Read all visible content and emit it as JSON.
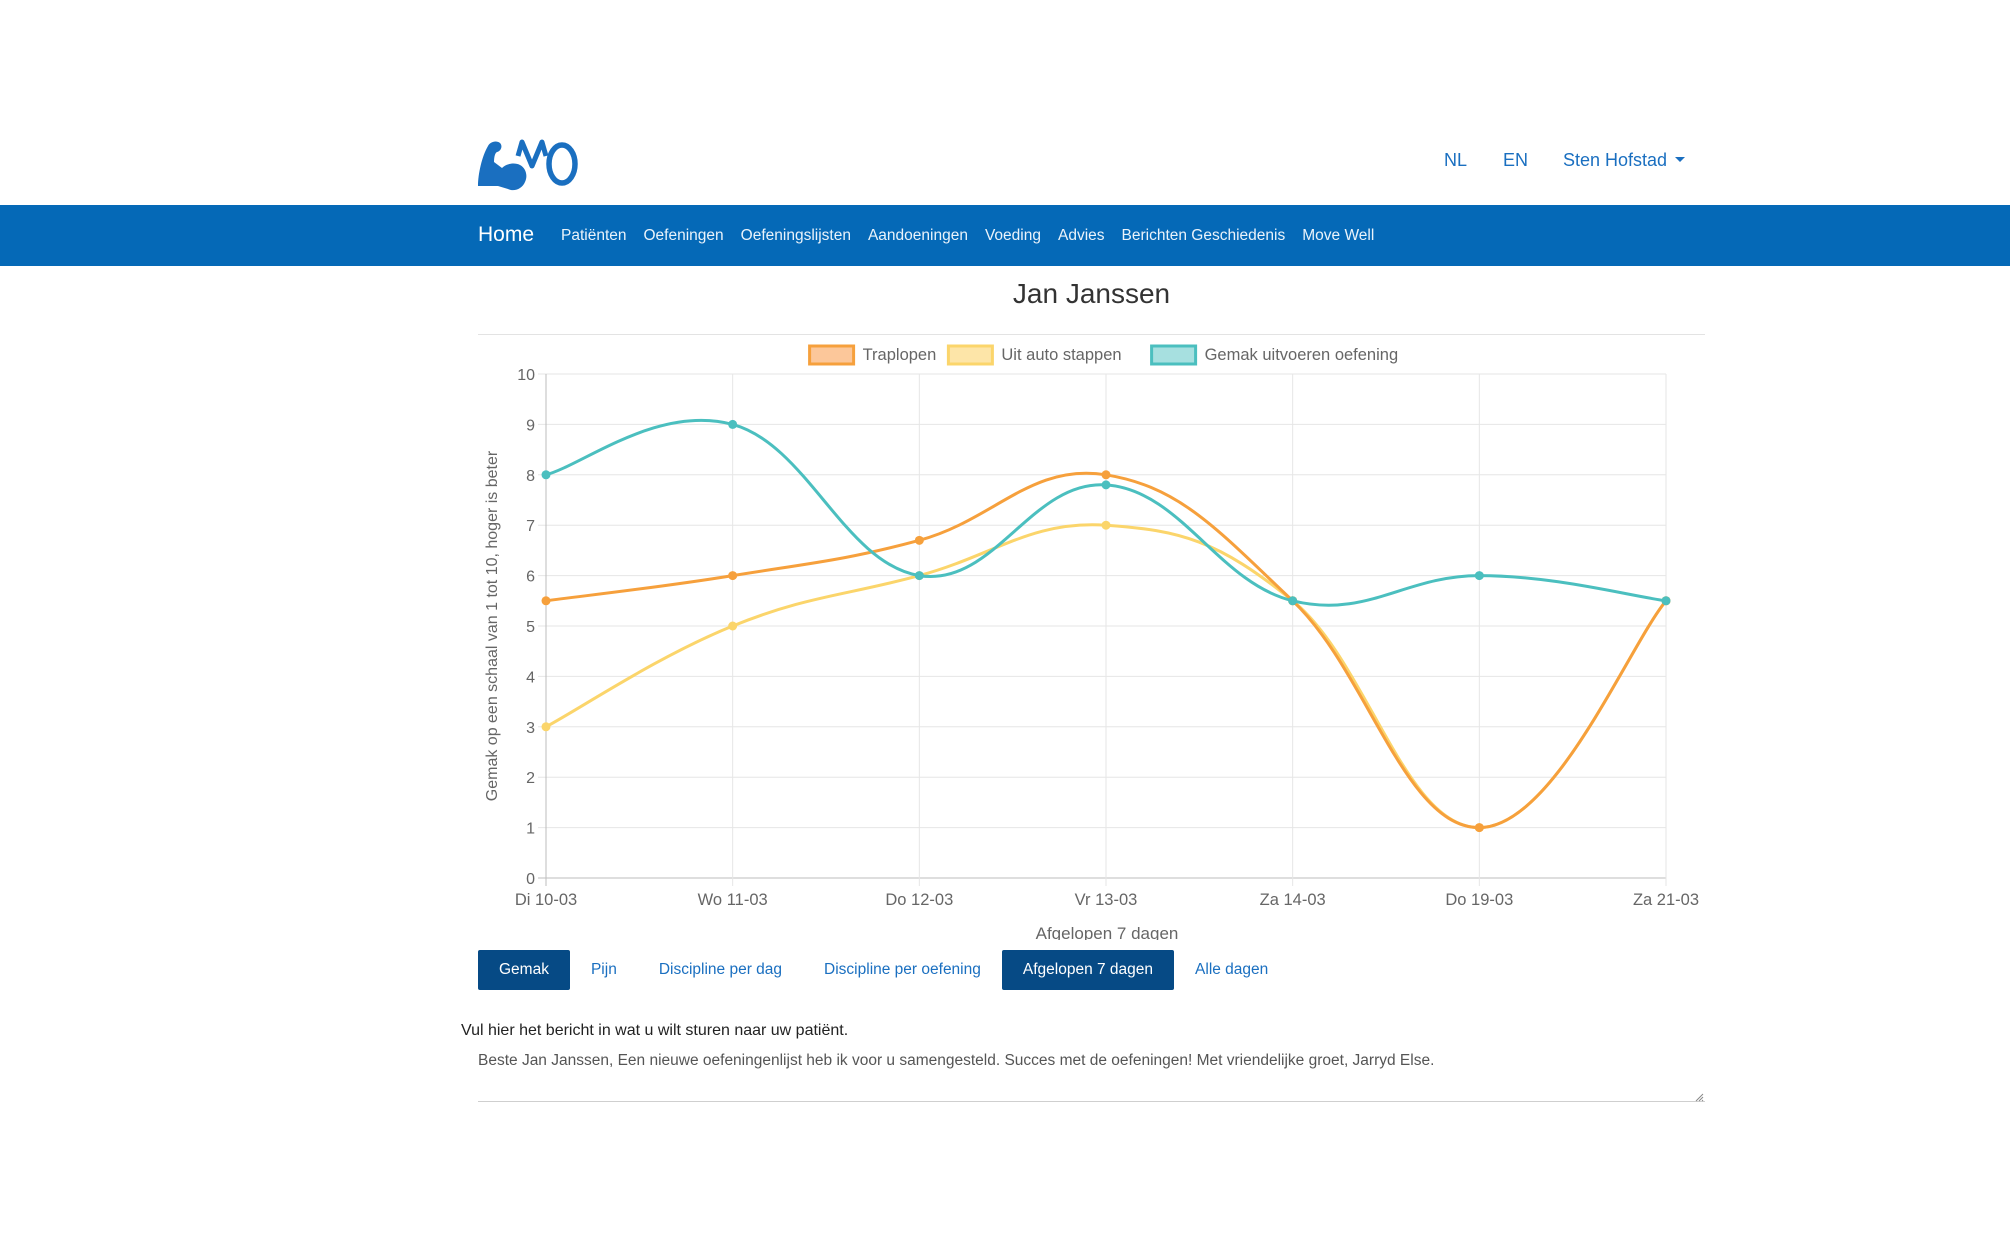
{
  "header": {
    "logo_icon": "flexed-arm-logo-icon",
    "logo_text": "MO",
    "brand_color": "#1a6fc0",
    "lang_nl": "NL",
    "lang_en": "EN",
    "user_name": "Sten Hofstad"
  },
  "nav": {
    "brand": "Home",
    "items": [
      "Patiënten",
      "Oefeningen",
      "Oefeningslijsten",
      "Aandoeningen",
      "Voeding",
      "Advies",
      "Berichten Geschiedenis",
      "Move Well"
    ],
    "bar_color": "#0569b7"
  },
  "patient": {
    "name": "Jan Janssen"
  },
  "chart_data": {
    "type": "line",
    "categories": [
      "Di 10-03",
      "Wo 11-03",
      "Do 12-03",
      "Vr 13-03",
      "Za 14-03",
      "Do 19-03",
      "Za 21-03"
    ],
    "series": [
      {
        "name": "Traplopen",
        "color": "#f6a03c",
        "fill": "#fcc79a",
        "values": [
          5.5,
          6,
          6.7,
          8,
          5.5,
          1,
          5.5
        ]
      },
      {
        "name": "Uit auto stappen",
        "color": "#fbd56b",
        "fill": "#fde5a8",
        "values": [
          3,
          5,
          6,
          7,
          5.5,
          1,
          5.5
        ]
      },
      {
        "name": "Gemak uitvoeren oefening",
        "color": "#4bbfbf",
        "fill": "#a7e0e0",
        "values": [
          8,
          9,
          6,
          7.8,
          5.5,
          6,
          5.5
        ]
      }
    ],
    "xlabel": "Afgelopen 7 dagen",
    "ylabel": "Gemak op een schaal van 1 tot 10, hoger is beter",
    "ylim": [
      0,
      10
    ],
    "yticks": [
      0,
      1,
      2,
      3,
      4,
      5,
      6,
      7,
      8,
      9,
      10
    ],
    "grid": true,
    "legend": "top-center"
  },
  "tabs": {
    "metric": [
      {
        "label": "Gemak",
        "active": true
      },
      {
        "label": "Pijn",
        "active": false
      },
      {
        "label": "Discipline per dag",
        "active": false
      },
      {
        "label": "Discipline per oefening",
        "active": false
      }
    ],
    "range": [
      {
        "label": "Afgelopen 7 dagen",
        "active": true
      },
      {
        "label": "Alle dagen",
        "active": false
      }
    ]
  },
  "message": {
    "label": "Vul hier het bericht in wat u wilt sturen naar uw patiënt.",
    "value": "Beste Jan Janssen, Een nieuwe oefeningenlijst heb ik voor u samengesteld. Succes met de oefeningen! Met vriendelijke groet, Jarryd Else."
  }
}
